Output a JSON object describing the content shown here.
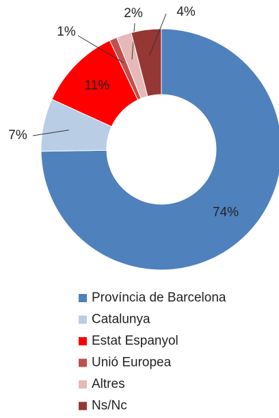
{
  "chart_data": {
    "type": "donut",
    "categories": [
      "Província de Barcelona",
      "Catalunya",
      "Estat Espanyol",
      "Unió Europea",
      "Altres",
      "Ns/Nc"
    ],
    "values": [
      74,
      7,
      11,
      1,
      2,
      4
    ],
    "value_labels": [
      "74%",
      "7%",
      "11%",
      "1%",
      "2%",
      "4%"
    ],
    "colors": [
      "#4f81bd",
      "#b9cde5",
      "#ff0000",
      "#c0504d",
      "#e6b9b8",
      "#953735"
    ],
    "legend": "bottom"
  }
}
